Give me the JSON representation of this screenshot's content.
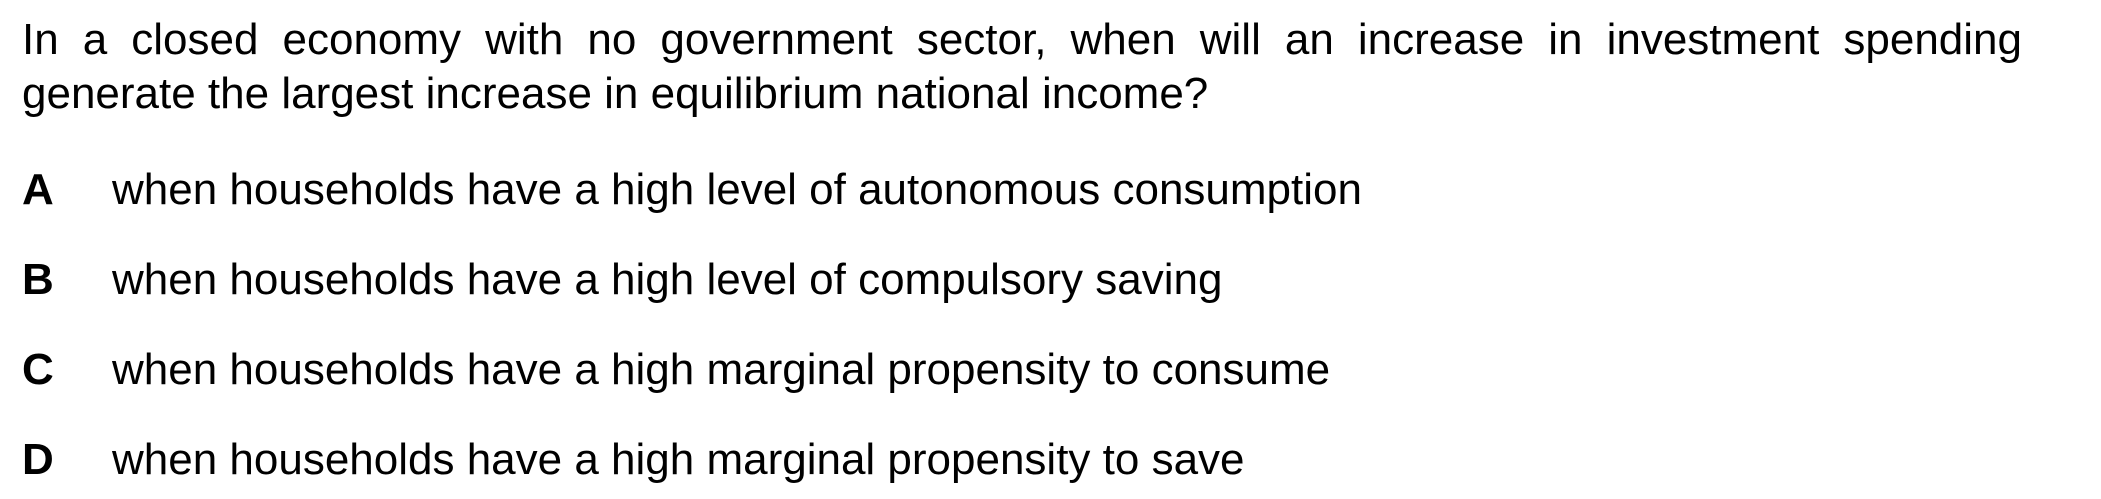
{
  "question": {
    "line1": "In a closed economy with no government sector, when will an increase in investment spending",
    "line2": "generate the largest increase in equilibrium national income?"
  },
  "options": [
    {
      "letter": "A",
      "text": "when households have a high level of autonomous consumption"
    },
    {
      "letter": "B",
      "text": "when households have a high level of compulsory saving"
    },
    {
      "letter": "C",
      "text": "when households have a high marginal propensity to consume"
    },
    {
      "letter": "D",
      "text": "when households have a high marginal propensity to save"
    }
  ]
}
